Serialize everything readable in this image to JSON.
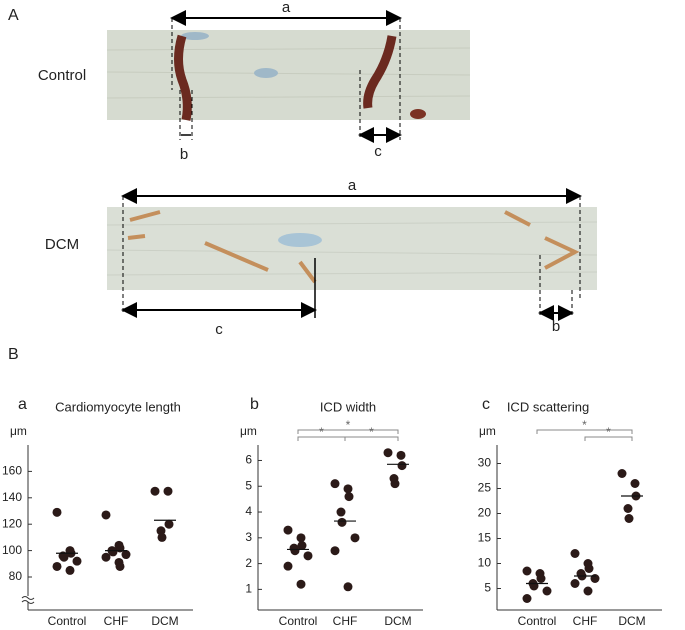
{
  "figure": {
    "panel_a": {
      "label": "A",
      "control": {
        "name": "Control",
        "a": "a",
        "b": "b",
        "c": "c"
      },
      "dcm": {
        "name": "DCM",
        "a": "a",
        "b": "b",
        "c": "c"
      }
    },
    "panel_b": {
      "label": "B"
    }
  },
  "chart_data": [
    {
      "type": "strip",
      "panel": "a",
      "title": "Cardiomyocyte length",
      "y_label": "μm",
      "categories": [
        "Control",
        "CHF",
        "DCM"
      ],
      "values": [
        [
          129,
          100,
          98,
          96,
          95,
          92,
          88,
          85
        ],
        [
          127,
          104,
          102,
          100,
          99,
          97,
          95,
          91,
          88
        ],
        [
          145,
          145,
          120,
          115,
          110
        ]
      ],
      "means": [
        98,
        100,
        123
      ],
      "ylim": [
        55,
        180
      ],
      "yticks": [
        80,
        100,
        120,
        140,
        160
      ],
      "axis_break": true,
      "comparisons": []
    },
    {
      "type": "strip",
      "panel": "b",
      "title": "ICD width",
      "y_label": "μm",
      "categories": [
        "Control",
        "CHF",
        "DCM"
      ],
      "values": [
        [
          3.3,
          3.0,
          2.7,
          2.6,
          2.5,
          2.3,
          1.9,
          1.2
        ],
        [
          5.1,
          4.9,
          4.6,
          4.0,
          3.6,
          3.0,
          2.5,
          1.1
        ],
        [
          6.3,
          6.2,
          5.8,
          5.3,
          5.1
        ]
      ],
      "means": [
        2.55,
        3.65,
        5.85
      ],
      "ylim": [
        0.2,
        6.6
      ],
      "yticks": [
        1,
        2,
        3,
        4,
        5,
        6
      ],
      "axis_break": false,
      "comparisons": [
        {
          "from": "Control",
          "to": "DCM",
          "label": "*"
        },
        {
          "from": "Control",
          "to": "CHF",
          "label": "*"
        },
        {
          "from": "CHF",
          "to": "DCM",
          "label": "*"
        }
      ]
    },
    {
      "type": "strip",
      "panel": "c",
      "title": "ICD scattering",
      "y_label": "μm",
      "categories": [
        "Control",
        "CHF",
        "DCM"
      ],
      "values": [
        [
          8.5,
          8,
          7,
          6,
          5.5,
          4.5,
          3
        ],
        [
          12,
          10,
          9,
          8,
          7.5,
          7,
          6,
          4.5
        ],
        [
          28,
          26,
          23.5,
          21,
          19
        ]
      ],
      "means": [
        6,
        7.5,
        23.5
      ],
      "ylim": [
        0.7,
        33.7
      ],
      "yticks": [
        5,
        10,
        15,
        20,
        25,
        30
      ],
      "axis_break": false,
      "comparisons": [
        {
          "from": "Control",
          "to": "DCM",
          "label": "*"
        },
        {
          "from": "CHF",
          "to": "DCM",
          "label": "*"
        }
      ]
    }
  ]
}
